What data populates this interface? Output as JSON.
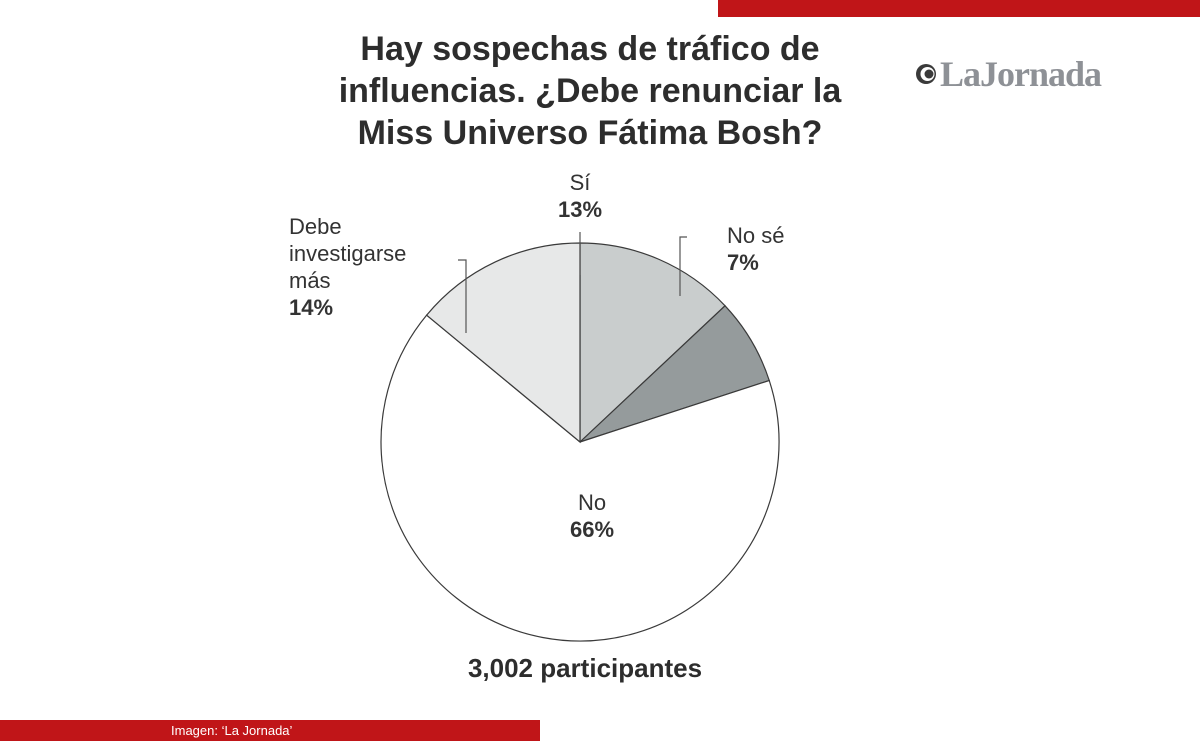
{
  "branding": {
    "logo_text": "LaJornada",
    "brand_red": "#c01518",
    "logo_gray": "#8e9196"
  },
  "credit": "Imagen: ‘La Jornada’",
  "footer": "3,002 participantes",
  "chart_data": {
    "type": "pie",
    "title": "Hay sospechas de tráfico de influencias. ¿Debe renunciar la Miss Universo Fátima Bosh?",
    "unit": "%",
    "slices": [
      {
        "label": "Sí",
        "lines": [
          "Sí"
        ],
        "value": 13,
        "display": "13%",
        "color": "#c9cdcd"
      },
      {
        "label": "No sé",
        "lines": [
          "No sé"
        ],
        "value": 7,
        "display": "7%",
        "color": "#959b9c"
      },
      {
        "label": "No",
        "lines": [
          "No"
        ],
        "value": 66,
        "display": "66%",
        "color": "#ffffff"
      },
      {
        "label": "Debe investigarse más",
        "lines": [
          "Debe",
          "investigarse",
          "más"
        ],
        "value": 14,
        "display": "14%",
        "color": "#e7e8e8"
      }
    ]
  }
}
